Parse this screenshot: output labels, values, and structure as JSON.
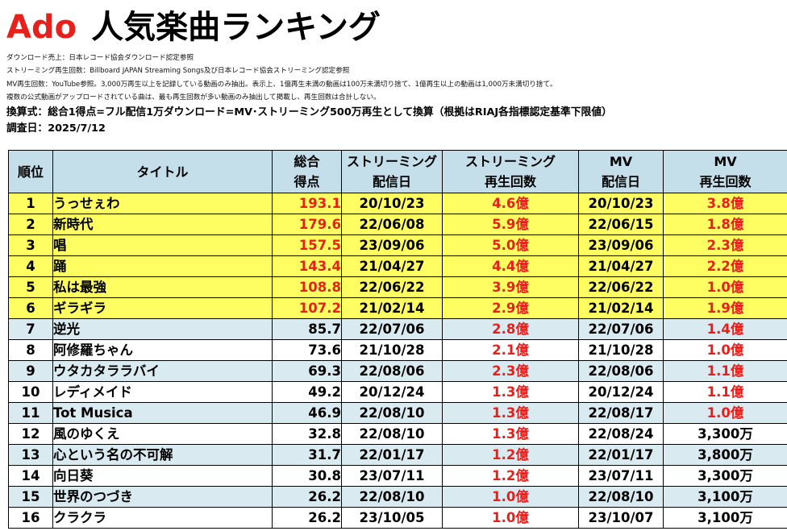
{
  "header": {
    "artist": "Ado",
    "title": "人気楽曲ランキング"
  },
  "notes": [
    "ダウンロード売上：日本レコード協会ダウンロード認定参照",
    "ストリーミング再生回数：Billboard JAPAN Streaming Songs及び日本レコード協会ストリーミング認定参照",
    "MV再生回数：YouTube参照。3,000万再生以上を記録している動画のみ抽出。表示上、1億再生未満の動画は100万未満切り捨て、1億再生以上の動画は1,000万未満切り捨て。",
    "複数の公式動画がアップロードされている曲は、最も再生回数が多い動画のみ抽出して掲載し、再生回数は合計しない。"
  ],
  "conversion": "換算式：総合1得点=フル配信1万ダウンロード=MV･ストリーミング500万再生として換算（根拠はRIAJ各指標認定基準下限値）",
  "survey_date": "調査日：2025/7/12",
  "columns": {
    "rank": "順位",
    "title": "タイトル",
    "score_line1": "総合",
    "score_line2": "得点",
    "stream_date_line1": "ストリーミング",
    "stream_date_line2": "配信日",
    "stream_plays_line1": "ストリーミング",
    "stream_plays_line2": "再生回数",
    "mv_date_line1": "MV",
    "mv_date_line2": "配信日",
    "mv_plays_line1": "MV",
    "mv_plays_line2": "再生回数"
  },
  "rows": [
    {
      "rank": "1",
      "title": "うっせぇわ",
      "score": "193.1",
      "stream_date": "20/10/23",
      "stream_plays": "4.6億",
      "mv_date": "20/10/23",
      "mv_plays": "3.8億"
    },
    {
      "rank": "2",
      "title": "新時代",
      "score": "179.6",
      "stream_date": "22/06/08",
      "stream_plays": "5.9億",
      "mv_date": "22/06/15",
      "mv_plays": "1.8億"
    },
    {
      "rank": "3",
      "title": "唱",
      "score": "157.5",
      "stream_date": "23/09/06",
      "stream_plays": "5.0億",
      "mv_date": "23/09/06",
      "mv_plays": "2.3億"
    },
    {
      "rank": "4",
      "title": "踊",
      "score": "143.4",
      "stream_date": "21/04/27",
      "stream_plays": "4.4億",
      "mv_date": "21/04/27",
      "mv_plays": "2.2億"
    },
    {
      "rank": "5",
      "title": "私は最強",
      "score": "108.8",
      "stream_date": "22/06/22",
      "stream_plays": "3.9億",
      "mv_date": "22/06/22",
      "mv_plays": "1.0億"
    },
    {
      "rank": "6",
      "title": "ギラギラ",
      "score": "107.2",
      "stream_date": "21/02/14",
      "stream_plays": "2.9億",
      "mv_date": "21/02/14",
      "mv_plays": "1.9億"
    },
    {
      "rank": "7",
      "title": "逆光",
      "score": "85.7",
      "stream_date": "22/07/06",
      "stream_plays": "2.8億",
      "mv_date": "22/07/06",
      "mv_plays": "1.4億"
    },
    {
      "rank": "8",
      "title": "阿修羅ちゃん",
      "score": "73.6",
      "stream_date": "21/10/28",
      "stream_plays": "2.1億",
      "mv_date": "21/10/28",
      "mv_plays": "1.0億"
    },
    {
      "rank": "9",
      "title": "ウタカタララバイ",
      "score": "69.3",
      "stream_date": "22/08/06",
      "stream_plays": "2.3億",
      "mv_date": "22/08/06",
      "mv_plays": "1.1億"
    },
    {
      "rank": "10",
      "title": "レディメイド",
      "score": "49.2",
      "stream_date": "20/12/24",
      "stream_plays": "1.3億",
      "mv_date": "20/12/24",
      "mv_plays": "1.1億"
    },
    {
      "rank": "11",
      "title": "Tot Musica",
      "score": "46.9",
      "stream_date": "22/08/10",
      "stream_plays": "1.3億",
      "mv_date": "22/08/17",
      "mv_plays": "1.0億"
    },
    {
      "rank": "12",
      "title": "風のゆくえ",
      "score": "32.8",
      "stream_date": "22/08/10",
      "stream_plays": "1.3億",
      "mv_date": "22/08/24",
      "mv_plays": "3,300万"
    },
    {
      "rank": "13",
      "title": "心という名の不可解",
      "score": "31.7",
      "stream_date": "22/01/17",
      "stream_plays": "1.2億",
      "mv_date": "22/01/17",
      "mv_plays": "3,800万"
    },
    {
      "rank": "14",
      "title": "向日葵",
      "score": "30.8",
      "stream_date": "23/07/11",
      "stream_plays": "1.2億",
      "mv_date": "23/07/11",
      "mv_plays": "3,300万"
    },
    {
      "rank": "15",
      "title": "世界のつづき",
      "score": "26.2",
      "stream_date": "22/08/10",
      "stream_plays": "1.0億",
      "mv_date": "22/08/10",
      "mv_plays": "3,100万"
    },
    {
      "rank": "16",
      "title": "クラクラ",
      "score": "26.2",
      "stream_date": "23/10/05",
      "stream_plays": "1.0億",
      "mv_date": "23/10/07",
      "mv_plays": "3,100万"
    }
  ],
  "colors": {
    "accent_red": "#e8201c",
    "header_bg": "#c5dfea",
    "top6_bg": "#fefe62",
    "alt_bg": "#d9eaf1"
  }
}
